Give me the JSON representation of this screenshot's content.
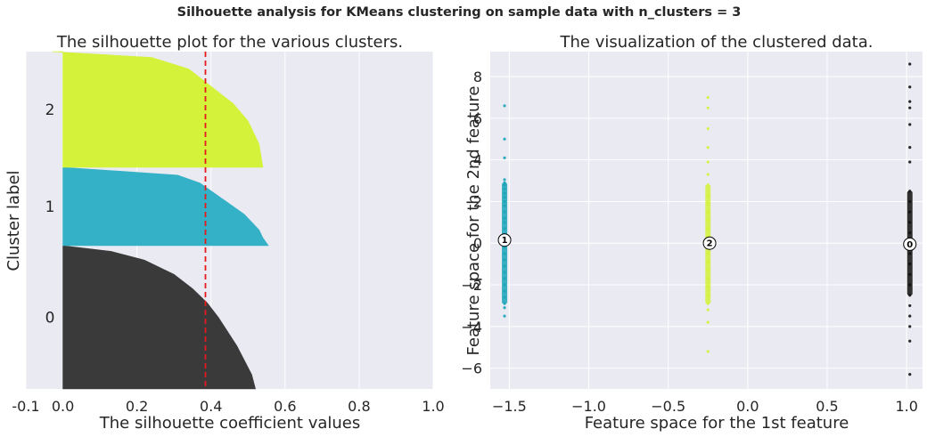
{
  "suptitle": "Silhouette analysis for KMeans clustering on sample data with n_clusters = 3",
  "chart_data": [
    {
      "type": "area",
      "title": "The silhouette plot for the various clusters.",
      "xlabel": "The silhouette coefficient values",
      "ylabel": "Cluster label",
      "xlim": [
        -0.1,
        1.0
      ],
      "xticks": [
        "-0.1",
        "0.0",
        "0.2",
        "0.4",
        "0.6",
        "0.8",
        "1.0"
      ],
      "xtick_values": [
        -0.1,
        0.0,
        0.2,
        0.4,
        0.6,
        0.8,
        1.0
      ],
      "grid": true,
      "mean_silhouette": 0.385,
      "mean_line_color": "#e41a1c",
      "clusters": [
        {
          "label": "0",
          "color": "#3a3a3a",
          "profile": [
            [
              0,
              0.52
            ],
            [
              0.1,
              0.51
            ],
            [
              0.2,
              0.49
            ],
            [
              0.3,
              0.47
            ],
            [
              0.4,
              0.445
            ],
            [
              0.5,
              0.42
            ],
            [
              0.6,
              0.39
            ],
            [
              0.7,
              0.35
            ],
            [
              0.8,
              0.3
            ],
            [
              0.9,
              0.22
            ],
            [
              0.96,
              0.13
            ],
            [
              1.0,
              0.0
            ]
          ]
        },
        {
          "label": "1",
          "color": "#34b1c6",
          "profile": [
            [
              0,
              0.555
            ],
            [
              0.1,
              0.54
            ],
            [
              0.2,
              0.53
            ],
            [
              0.3,
              0.51
            ],
            [
              0.4,
              0.49
            ],
            [
              0.5,
              0.46
            ],
            [
              0.6,
              0.43
            ],
            [
              0.7,
              0.4
            ],
            [
              0.8,
              0.37
            ],
            [
              0.9,
              0.31
            ],
            [
              1.0,
              0.0
            ]
          ]
        },
        {
          "label": "2",
          "color": "#d4f23a",
          "profile": [
            [
              0,
              0.54
            ],
            [
              0.2,
              0.53
            ],
            [
              0.4,
              0.5
            ],
            [
              0.55,
              0.46
            ],
            [
              0.7,
              0.4
            ],
            [
              0.85,
              0.34
            ],
            [
              0.95,
              0.24
            ],
            [
              1.0,
              -0.03
            ]
          ]
        }
      ]
    },
    {
      "type": "scatter",
      "title": "The visualization of the clustered data.",
      "xlabel": "Feature space for the 1st feature",
      "ylabel": "Feature space for the 2nd feature",
      "xlim": [
        -1.62,
        1.1
      ],
      "ylim": [
        -7.0,
        9.2
      ],
      "xticks": [
        "−1.5",
        "−1.0",
        "−0.5",
        "0.0",
        "0.5",
        "1.0"
      ],
      "xtick_values": [
        -1.5,
        -1.0,
        -0.5,
        0.0,
        0.5,
        1.0
      ],
      "yticks": [
        "−6",
        "−4",
        "−2",
        "0",
        "2",
        "4",
        "6",
        "8"
      ],
      "ytick_values": [
        -6,
        -4,
        -2,
        0,
        2,
        4,
        6,
        8
      ],
      "grid": true,
      "series": [
        {
          "color": "#1aa5b8",
          "x": -1.53,
          "points": [
            6.6,
            5.0,
            4.1,
            3.05,
            2.9,
            2.8,
            2.6,
            2.4,
            2.2,
            2.0,
            1.8,
            1.5,
            1.2,
            1.0,
            0.7,
            0.4,
            0.1,
            -0.2,
            -0.5,
            -0.8,
            -1.1,
            -1.4,
            -1.7,
            -2.0,
            -2.3,
            -2.6,
            -2.9,
            -3.1,
            -3.5
          ]
        },
        {
          "color": "#d4f23a",
          "x": -0.25,
          "points": [
            7.0,
            6.5,
            5.5,
            4.6,
            3.9,
            3.3,
            2.8,
            2.3,
            1.9,
            1.5,
            1.1,
            0.7,
            0.3,
            -0.1,
            -0.5,
            -0.9,
            -1.3,
            -1.7,
            -2.1,
            -2.5,
            -2.9,
            -3.2,
            -3.8,
            -5.2
          ]
        },
        {
          "color": "#111111",
          "x": 1.02,
          "points": [
            8.6,
            7.5,
            6.8,
            6.5,
            5.7,
            4.6,
            3.9,
            2.5,
            2.0,
            1.5,
            1.0,
            0.5,
            0.0,
            -0.5,
            -1.0,
            -1.5,
            -2.0,
            -2.5,
            -3.0,
            -3.5,
            -4.0,
            -4.7,
            -6.3
          ]
        }
      ],
      "centers": [
        {
          "label": "0",
          "x": 1.02,
          "y": -0.05
        },
        {
          "label": "1",
          "x": -1.53,
          "y": 0.15
        },
        {
          "label": "2",
          "x": -0.24,
          "y": 0.0
        }
      ]
    }
  ]
}
